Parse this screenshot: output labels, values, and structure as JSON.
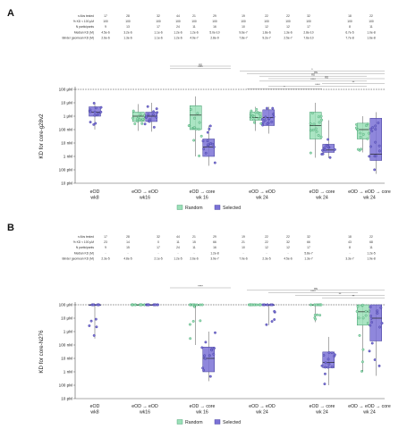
{
  "colors": {
    "random": "#9be0b8",
    "random_stroke": "#3f9a6a",
    "selected": "#7b72d6",
    "selected_stroke": "#3f3a99",
    "dashed": "#222222",
    "axis": "#555555"
  },
  "legend": {
    "random": "Random",
    "selected": "Selected"
  },
  "chart_data": [
    {
      "panel": "A",
      "type": "box",
      "ylabel": "KD for core-g28v2",
      "yscale": "log",
      "ylim": [
        1e-11,
        0.0001
      ],
      "yticks": [
        "100 μM",
        "10 μM",
        "1 μM",
        "100 nM",
        "10 nM",
        "1 nM",
        "100 pM",
        "10 pM"
      ],
      "threshold_line": 0.0001,
      "groups": [
        {
          "label": [
            "eOD",
            "wk8"
          ],
          "boxes": [
            "Selected"
          ]
        },
        {
          "label": [
            "eOD → eOD",
            "wk16"
          ],
          "boxes": [
            "Random",
            "Selected"
          ]
        },
        {
          "label": [
            "eOD → core",
            "wk 16"
          ],
          "boxes": [
            "Random",
            "Selected"
          ]
        },
        {
          "label": [
            "eOD → eOD",
            "wk 24"
          ],
          "boxes": [
            "Random",
            "Selected"
          ]
        },
        {
          "label": [
            "eOD → core",
            "wk 24"
          ],
          "boxes": [
            "Random",
            "Selected"
          ]
        },
        {
          "label": [
            "eOD → eOD → core",
            "wk 24"
          ],
          "boxes": [
            "Random",
            "Selected"
          ]
        }
      ],
      "boxes": [
        {
          "series": "Selected",
          "q1": 1e-06,
          "median": 2e-06,
          "q3": 5e-06,
          "min": 1e-07,
          "max": 1e-05
        },
        {
          "series": "Random",
          "q1": 4e-07,
          "median": 1e-06,
          "q3": 2e-06,
          "min": 8e-08,
          "max": 8e-06
        },
        {
          "series": "Selected",
          "q1": 4e-07,
          "median": 1e-06,
          "q3": 2e-06,
          "min": 7e-08,
          "max": 1e-05
        },
        {
          "series": "Random",
          "q1": 1e-07,
          "median": 1.2e-06,
          "q3": 6e-06,
          "min": 1e-09,
          "max": 3e-05
        },
        {
          "series": "Selected",
          "q1": 1e-09,
          "median": 5e-09,
          "q3": 2e-08,
          "min": 2e-10,
          "max": 2e-07
        },
        {
          "series": "Random",
          "q1": 5e-07,
          "median": 8e-07,
          "q3": 2e-06,
          "min": 8e-08,
          "max": 5e-06
        },
        {
          "series": "Selected",
          "q1": 2e-07,
          "median": 8e-07,
          "q3": 3e-06,
          "min": 5e-08,
          "max": 5e-06
        },
        {
          "series": "Random",
          "q1": 2e-08,
          "median": 2e-07,
          "q3": 2e-06,
          "min": 8e-10,
          "max": 1e-05
        },
        {
          "series": "Selected",
          "q1": 2e-09,
          "median": 3e-09,
          "q3": 8e-09,
          "min": 8e-10,
          "max": 5e-07
        },
        {
          "series": "Random",
          "q1": 2e-08,
          "median": 1e-07,
          "q3": 3e-07,
          "min": 2e-09,
          "max": 1e-06
        },
        {
          "series": "Selected",
          "q1": 5e-10,
          "median": 1.5e-09,
          "q3": 7e-07,
          "min": 5e-11,
          "max": 2e-06
        }
      ],
      "sig_labels": [
        "ns",
        "****",
        "*",
        "ns",
        "ns",
        "ns",
        "****",
        "**",
        "****",
        "*"
      ],
      "table": {
        "rows": [
          {
            "label": "n Abs tested",
            "values": [
              "17",
              "28",
              "32",
              "44",
              "21",
              "29",
              "19",
              "22",
              "22",
              "32",
              "18",
              "22"
            ]
          },
          {
            "label": "% KD < 100 μM",
            "values": [
              "100",
              "100",
              "100",
              "100",
              "100",
              "100",
              "100",
              "100",
              "100",
              "100",
              "100",
              "100"
            ]
          },
          {
            "label": "N participants",
            "values": [
              "9",
              "13",
              "17",
              "24",
              "11",
              "16",
              "10",
              "12",
              "12",
              "17",
              "8",
              "11"
            ]
          },
          {
            "label": "Median KD (M)",
            "values": [
              "4.5e-6",
              "3.2e-6",
              "1.1e-6",
              "1.2e-6",
              "1.2e-6",
              "5.0e-10",
              "9.6e-7",
              "1.8e-6",
              "1.3e-6",
              "2.8e-10",
              "6.7e-5",
              "1.0e-8"
            ]
          },
          {
            "label": "Binder geomean KD (M)",
            "values": [
              "2.6e-6",
              "1.3e-6",
              "1.1e-6",
              "1.2e-6",
              "4.9e-7",
              "2.8e-9",
              "7.8e-7",
              "9.2e-7",
              "2.5e-7",
              "7.6e-10",
              "7.7e-8",
              "1.6e-8"
            ]
          }
        ]
      }
    },
    {
      "panel": "B",
      "type": "box",
      "ylabel": "KD for core-N276",
      "yscale": "log",
      "ylim": [
        1e-11,
        0.0001
      ],
      "yticks": [
        "100 μM",
        "10 μM",
        "1 μM",
        "100 nM",
        "10 nM",
        "1 nM",
        "100 pM",
        "10 pM"
      ],
      "threshold_line": 0.0001,
      "groups": [
        {
          "label": [
            "eOD",
            "wk8"
          ],
          "boxes": [
            "Selected"
          ]
        },
        {
          "label": [
            "eOD → eOD",
            "wk16"
          ],
          "boxes": [
            "Random",
            "Selected"
          ]
        },
        {
          "label": [
            "eOD → core",
            "wk 16"
          ],
          "boxes": [
            "Random",
            "Selected"
          ]
        },
        {
          "label": [
            "eOD → eOD",
            "wk 24"
          ],
          "boxes": [
            "Random",
            "Selected"
          ]
        },
        {
          "label": [
            "eOD → core",
            "wk 24"
          ],
          "boxes": [
            "Random",
            "Selected"
          ]
        },
        {
          "label": [
            "eOD → eOD → core",
            "wk 24"
          ],
          "boxes": [
            "Random",
            "Selected"
          ]
        }
      ],
      "boxes": [
        {
          "series": "Selected",
          "q1": 0.0001,
          "median": 0.0001,
          "q3": 0.0001,
          "min": 3e-07,
          "max": 0.0001
        },
        {
          "series": "Random",
          "q1": 0.0001,
          "median": 0.0001,
          "q3": 0.0001,
          "min": 0.0001,
          "max": 0.0001
        },
        {
          "series": "Selected",
          "q1": 0.0001,
          "median": 0.0001,
          "q3": 0.0001,
          "min": 0.0001,
          "max": 0.0001
        },
        {
          "series": "Random",
          "q1": 0.0001,
          "median": 0.0001,
          "q3": 0.0001,
          "min": 1e-07,
          "max": 0.0001
        },
        {
          "series": "Selected",
          "q1": 1e-09,
          "median": 1e-08,
          "q3": 7e-08,
          "min": 2e-10,
          "max": 1e-06
        },
        {
          "series": "Random",
          "q1": 0.0001,
          "median": 0.0001,
          "q3": 0.0001,
          "min": 0.0001,
          "max": 0.0001
        },
        {
          "series": "Selected",
          "q1": 0.0001,
          "median": 0.0001,
          "q3": 0.0001,
          "min": 3e-06,
          "max": 0.0001
        },
        {
          "series": "Random",
          "q1": 0.0001,
          "median": 0.0001,
          "q3": 0.0001,
          "min": 5e-06,
          "max": 0.0001
        },
        {
          "series": "Selected",
          "q1": 2e-09,
          "median": 5e-09,
          "q3": 3e-08,
          "min": 1e-10,
          "max": 4e-07
        },
        {
          "series": "Random",
          "q1": 3e-06,
          "median": 3e-05,
          "q3": 0.0001,
          "min": 1e-09,
          "max": 0.0001
        },
        {
          "series": "Selected",
          "q1": 2e-07,
          "median": 1e-05,
          "q3": 0.0001,
          "min": 5e-10,
          "max": 0.0001
        }
      ],
      "sig_labels": [
        "****",
        "ns",
        "****",
        "**",
        "**"
      ],
      "table": {
        "rows": [
          {
            "label": "n Abs tested",
            "values": [
              "17",
              "28",
              "32",
              "44",
              "21",
              "29",
              "19",
              "22",
              "22",
              "32",
              "18",
              "22"
            ]
          },
          {
            "label": "% KD < 100 μM",
            "values": [
              "23",
              "14",
              "0",
              "11",
              "15",
              "66",
              "21",
              "22",
              "32",
              "66",
              "43",
              "68"
            ]
          },
          {
            "label": "N participants",
            "values": [
              "9",
              "15",
              "17",
              "24",
              "11",
              "16",
              "10",
              "12",
              "12",
              "17",
              "8",
              "11"
            ]
          },
          {
            "label": "Median KD (M)",
            "values": [
              "-",
              "-",
              "-",
              "-",
              "-",
              "1.2e-8",
              "-",
              "-",
              "-",
              "5.8e-7",
              "-",
              "1.2e-5"
            ]
          },
          {
            "label": "Binder geomean KD (M)",
            "values": [
              "2.3e-5",
              "4.8e-5",
              "2.1e-5",
              "1.2e-5",
              "2.6e-6",
              "3.9e-7",
              "7.0e-6",
              "2.3e-5",
              "4.5e-6",
              "1.3e-7",
              "3.3e-7",
              "1.9e-8"
            ]
          }
        ]
      }
    }
  ]
}
